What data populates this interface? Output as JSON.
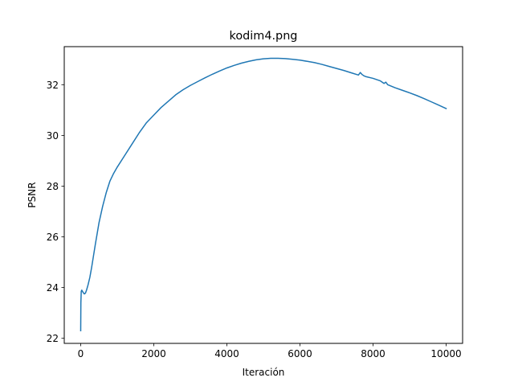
{
  "chart_data": {
    "type": "line",
    "title": "kodim4.png",
    "xlabel": "Iteración",
    "ylabel": "PSNR",
    "xlim": [
      -450,
      10450
    ],
    "ylim": [
      21.8,
      33.5
    ],
    "xticks": [
      0,
      2000,
      4000,
      6000,
      8000,
      10000
    ],
    "yticks": [
      22,
      24,
      26,
      28,
      30,
      32
    ],
    "grid": false,
    "line_color": "#1f77b4",
    "series": [
      {
        "x": [
          0,
          5,
          15,
          30,
          50,
          70,
          100,
          130,
          160,
          200,
          250,
          300,
          350,
          400,
          500,
          600,
          700,
          800,
          900,
          1000,
          1200,
          1400,
          1600,
          1800,
          2000,
          2200,
          2400,
          2600,
          2800,
          3000,
          3200,
          3400,
          3600,
          3800,
          4000,
          4200,
          4400,
          4600,
          4800,
          5000,
          5200,
          5400,
          5600,
          5800,
          6000,
          6200,
          6400,
          6600,
          6800,
          7000,
          7200,
          7400,
          7600,
          7650,
          7700,
          7750,
          7800,
          8000,
          8200,
          8300,
          8350,
          8400,
          8600,
          8800,
          9000,
          9200,
          9400,
          9600,
          9800,
          10000
        ],
        "y": [
          22.3,
          23.4,
          23.85,
          23.9,
          23.85,
          23.8,
          23.75,
          23.78,
          23.9,
          24.1,
          24.4,
          24.8,
          25.25,
          25.7,
          26.55,
          27.2,
          27.75,
          28.2,
          28.5,
          28.75,
          29.2,
          29.65,
          30.1,
          30.5,
          30.8,
          31.1,
          31.35,
          31.6,
          31.8,
          31.97,
          32.12,
          32.27,
          32.41,
          32.54,
          32.66,
          32.76,
          32.85,
          32.92,
          32.98,
          33.02,
          33.04,
          33.04,
          33.03,
          33.0,
          32.97,
          32.92,
          32.87,
          32.8,
          32.72,
          32.64,
          32.56,
          32.47,
          32.38,
          32.48,
          32.4,
          32.35,
          32.32,
          32.25,
          32.15,
          32.05,
          32.1,
          32.0,
          31.88,
          31.78,
          31.68,
          31.57,
          31.45,
          31.32,
          31.19,
          31.06
        ]
      }
    ]
  }
}
